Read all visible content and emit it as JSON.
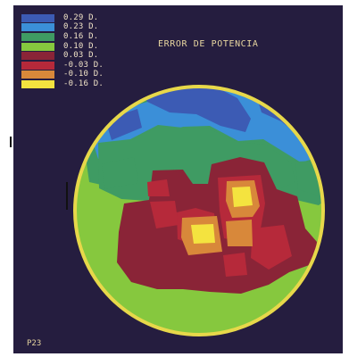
{
  "title": "ERROR DE POTENCIA",
  "footer_label": "P23",
  "legend": [
    {
      "label": "0.29 D.",
      "color": "#3c5bb4"
    },
    {
      "label": "0.23 D.",
      "color": "#3b8fd8"
    },
    {
      "label": "0.16 D.",
      "color": "#3f9b63"
    },
    {
      "label": "0.10 D.",
      "color": "#86c83e"
    },
    {
      "label": "0.03 D.",
      "color": "#8a2437"
    },
    {
      "label": "-0.03 D.",
      "color": "#b6293a"
    },
    {
      "label": "-0.10 D.",
      "color": "#d8883a"
    },
    {
      "label": "-0.16 D.",
      "color": "#f4e33f"
    }
  ],
  "colors": {
    "background": "#251d3f",
    "ring": "#e7d84a",
    "text": "#e8d6a0"
  }
}
